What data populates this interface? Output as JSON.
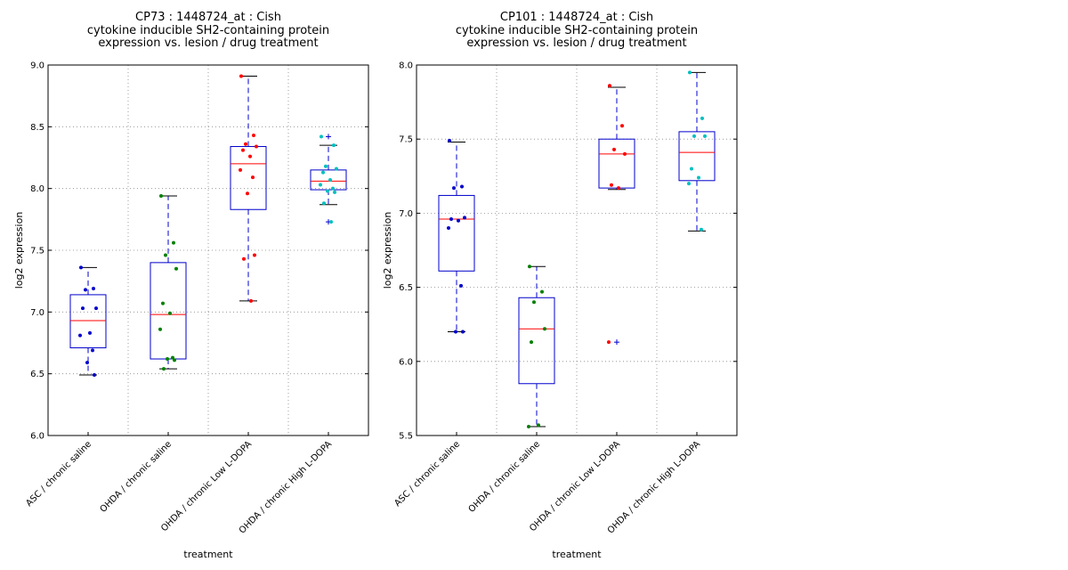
{
  "colors": {
    "box": "#0000cc",
    "median": "#ff0000",
    "grid": "#888888",
    "groups": [
      "#0000cc",
      "#008000",
      "#ff0000",
      "#00bfbf"
    ]
  },
  "chart_data": [
    {
      "type": "box",
      "title_lines": [
        "CP73 : 1448724_at : Cish",
        "cytokine inducible SH2-containing protein",
        "expression vs. lesion / drug treatment"
      ],
      "xlabel": "treatment",
      "ylabel": "log2 expression",
      "ylim": [
        6.0,
        9.0
      ],
      "yticks": [
        "6.0",
        "6.5",
        "7.0",
        "7.5",
        "8.0",
        "8.5",
        "9.0"
      ],
      "grid": true,
      "categories": [
        "ASC / chronic saline",
        "OHDA / chronic saline",
        "OHDA / chronic Low L-DOPA",
        "OHDA / chronic High L-DOPA"
      ],
      "boxes": [
        {
          "q1": 6.71,
          "median": 6.93,
          "q3": 7.14,
          "whisker_low": 6.49,
          "whisker_high": 7.36,
          "outliers": []
        },
        {
          "q1": 6.62,
          "median": 6.98,
          "q3": 7.4,
          "whisker_low": 6.54,
          "whisker_high": 7.94,
          "outliers": []
        },
        {
          "q1": 7.83,
          "median": 8.2,
          "q3": 8.34,
          "whisker_low": 7.09,
          "whisker_high": 8.91,
          "outliers": []
        },
        {
          "q1": 7.99,
          "median": 8.06,
          "q3": 8.15,
          "whisker_low": 7.87,
          "whisker_high": 8.35,
          "outliers": [
            8.42,
            7.73
          ]
        }
      ],
      "points": [
        [
          7.36,
          7.19,
          7.18,
          7.03,
          7.03,
          6.83,
          6.81,
          6.69,
          6.59,
          6.49
        ],
        [
          7.94,
          7.56,
          7.46,
          7.35,
          7.07,
          6.99,
          6.86,
          6.63,
          6.62,
          6.61,
          6.54
        ],
        [
          8.91,
          8.43,
          8.36,
          8.34,
          8.31,
          8.26,
          8.15,
          8.09,
          7.96,
          7.46,
          7.43,
          7.09
        ],
        [
          8.42,
          8.35,
          8.18,
          8.16,
          8.13,
          8.07,
          8.03,
          8.0,
          7.98,
          7.97,
          7.88,
          7.73
        ]
      ]
    },
    {
      "type": "box",
      "title_lines": [
        "CP101 : 1448724_at : Cish",
        "cytokine inducible SH2-containing protein",
        "expression vs. lesion / drug treatment"
      ],
      "xlabel": "treatment",
      "ylabel": "log2 expression",
      "ylim": [
        5.5,
        8.0
      ],
      "yticks": [
        "5.5",
        "6.0",
        "6.5",
        "7.0",
        "7.5",
        "8.0"
      ],
      "grid": true,
      "categories": [
        "ASC / chronic saline",
        "OHDA / chronic saline",
        "OHDA / chronic Low L-DOPA",
        "OHDA / chronic High L-DOPA"
      ],
      "boxes": [
        {
          "q1": 6.61,
          "median": 6.96,
          "q3": 7.12,
          "whisker_low": 6.2,
          "whisker_high": 7.48,
          "outliers": []
        },
        {
          "q1": 5.85,
          "median": 6.22,
          "q3": 6.43,
          "whisker_low": 5.56,
          "whisker_high": 6.64,
          "outliers": []
        },
        {
          "q1": 7.17,
          "median": 7.4,
          "q3": 7.5,
          "whisker_low": 7.16,
          "whisker_high": 7.85,
          "outliers": [
            6.13
          ]
        },
        {
          "q1": 7.22,
          "median": 7.41,
          "q3": 7.55,
          "whisker_low": 6.88,
          "whisker_high": 7.95,
          "outliers": []
        }
      ],
      "points": [
        [
          7.49,
          7.18,
          7.17,
          6.97,
          6.96,
          6.95,
          6.9,
          6.51,
          6.2,
          6.2
        ],
        [
          6.64,
          6.47,
          6.4,
          6.22,
          6.13,
          5.57,
          5.56
        ],
        [
          7.86,
          7.59,
          7.43,
          7.4,
          7.19,
          7.17,
          6.13
        ],
        [
          7.95,
          7.64,
          7.52,
          7.52,
          7.3,
          7.24,
          7.2,
          6.89
        ]
      ]
    }
  ]
}
